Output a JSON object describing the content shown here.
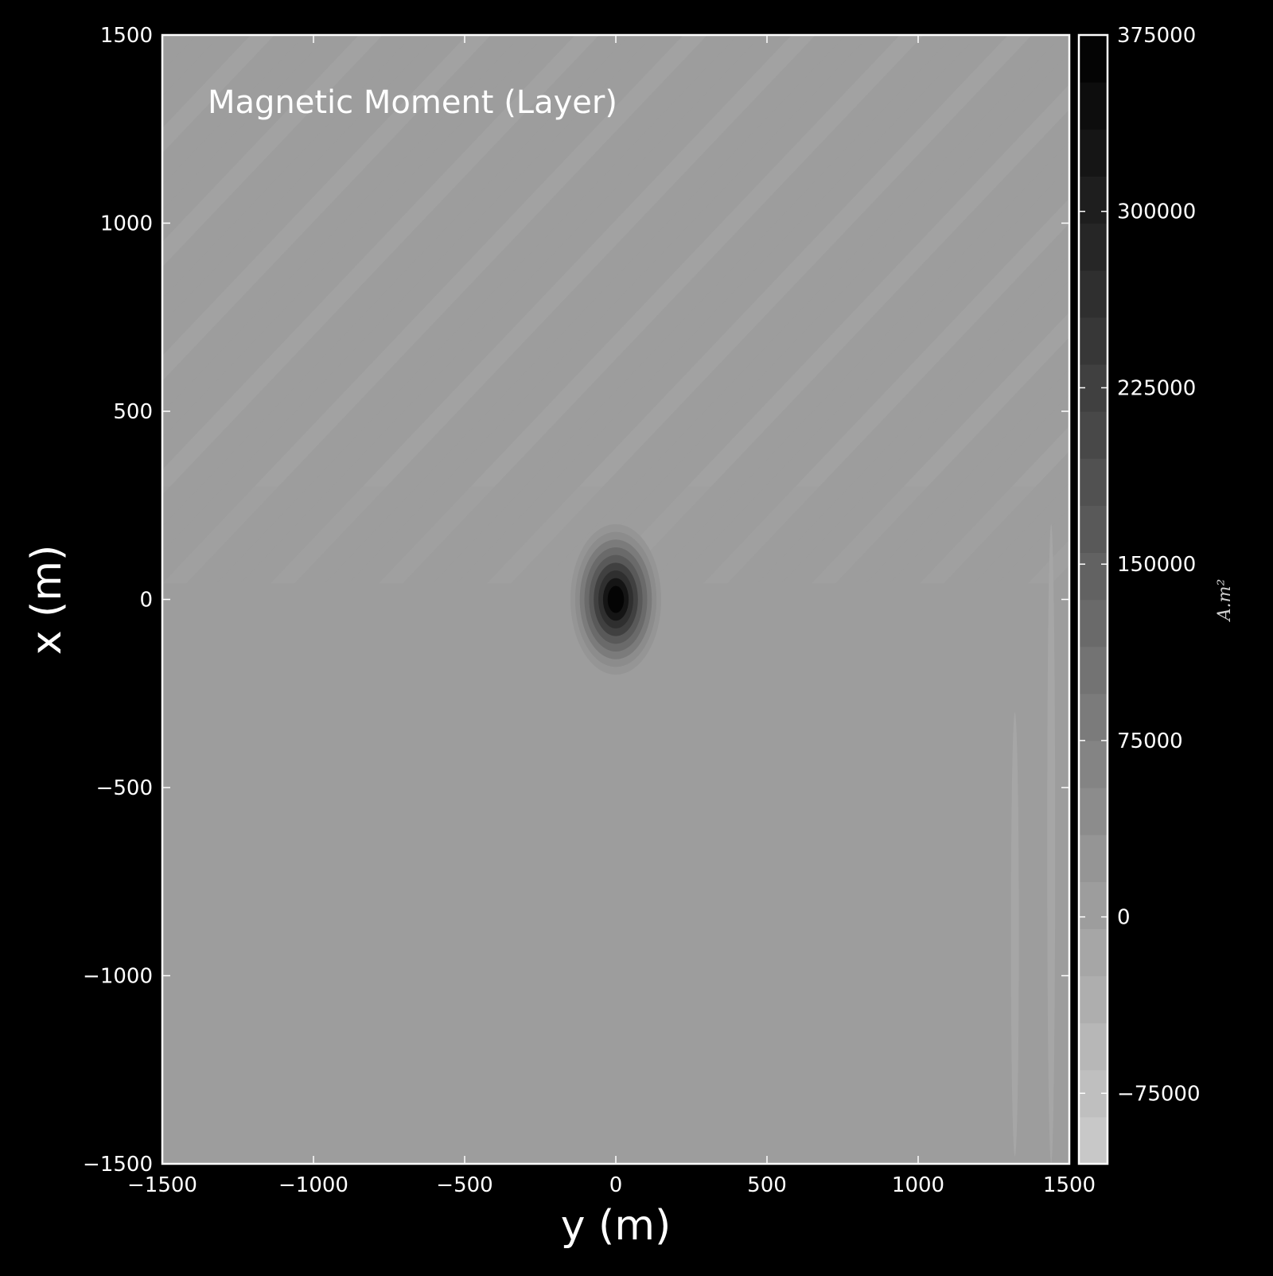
{
  "chart_data": {
    "type": "heatmap",
    "subtype": "filled-contour",
    "title": "Magnetic Moment (Layer)",
    "xlabel": "y (m)",
    "ylabel": "x (m)",
    "xlim": [
      -1500,
      1500
    ],
    "ylim": [
      -1500,
      1500
    ],
    "x_ticks": [
      -1500,
      -1000,
      -500,
      0,
      500,
      1000,
      1500
    ],
    "y_ticks": [
      -1500,
      -1000,
      -500,
      0,
      500,
      1000,
      1500
    ],
    "x_tick_labels": [
      "−1500",
      "−1000",
      "−500",
      "0",
      "500",
      "1000",
      "1500"
    ],
    "y_tick_labels": [
      "−1500",
      "−1000",
      "−500",
      "0",
      "500",
      "1000",
      "1500"
    ],
    "colormap": "gray_r",
    "colorbar": {
      "label": "A.m²",
      "range": [
        -105000,
        375000
      ],
      "levels": 24,
      "ticks": [
        -75000,
        0,
        75000,
        150000,
        225000,
        300000,
        375000
      ],
      "tick_labels": [
        "−75000",
        "0",
        "75000",
        "150000",
        "225000",
        "300000",
        "375000"
      ]
    },
    "background_value": 0,
    "anomalies": [
      {
        "kind": "peak",
        "center_y": 0,
        "center_x": 0,
        "value": 375000,
        "radius_y": 150,
        "radius_x": 200
      }
    ],
    "features": [
      {
        "kind": "diagonal-striping",
        "region": "x > 0",
        "amplitude": 15000
      },
      {
        "kind": "edge-lobe",
        "y": 1440,
        "x_range": [
          -1500,
          200
        ],
        "value": -20000
      },
      {
        "kind": "edge-lobe",
        "y": 1320,
        "x_range": [
          -1480,
          -300
        ],
        "value": -15000
      }
    ],
    "grid": false,
    "legend": "none"
  }
}
